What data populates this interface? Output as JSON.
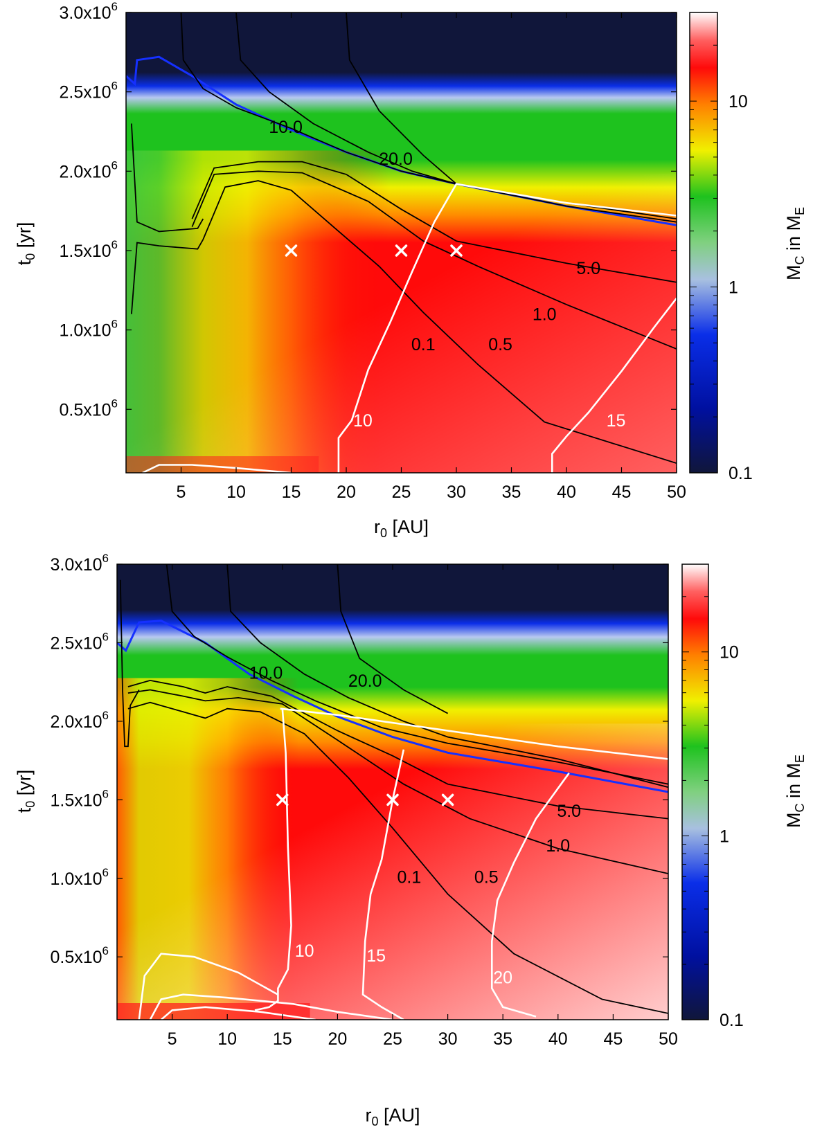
{
  "chart_data": [
    {
      "type": "heatmap",
      "panel": "top",
      "xlabel": "r",
      "xlabel_sub": "0",
      "xlabel_unit": "[AU]",
      "ylabel": "t",
      "ylabel_sub": "0",
      "ylabel_unit": "[yr]",
      "xlim": [
        0,
        50
      ],
      "ylim": [
        100000,
        3000000
      ],
      "xticks": [
        {
          "value": 5,
          "label": "5"
        },
        {
          "value": 10,
          "label": "10"
        },
        {
          "value": 15,
          "label": "15"
        },
        {
          "value": 20,
          "label": "20"
        },
        {
          "value": 25,
          "label": "25"
        },
        {
          "value": 30,
          "label": "30"
        },
        {
          "value": 35,
          "label": "35"
        },
        {
          "value": 40,
          "label": "40"
        },
        {
          "value": 45,
          "label": "45"
        },
        {
          "value": 50,
          "label": "50"
        }
      ],
      "yticks": [
        {
          "value": 500000,
          "mant": "0.5x10",
          "exp": "6"
        },
        {
          "value": 1000000,
          "mant": "1.0x10",
          "exp": "6"
        },
        {
          "value": 1500000,
          "mant": "1.5x10",
          "exp": "6"
        },
        {
          "value": 2000000,
          "mant": "2.0x10",
          "exp": "6"
        },
        {
          "value": 2500000,
          "mant": "2.5x10",
          "exp": "6"
        },
        {
          "value": 3000000,
          "mant": "3.0x10",
          "exp": "6"
        }
      ],
      "colorbar": {
        "label_main": "M",
        "label_sub": "C",
        "label_mid": " in M",
        "label_sub2": "E",
        "scale": "log",
        "range": [
          0.1,
          30
        ],
        "ticks": [
          {
            "value": 0.1,
            "label": "0.1"
          },
          {
            "value": 1,
            "label": "1"
          },
          {
            "value": 10,
            "label": "10"
          }
        ]
      },
      "black_contour_labels": [
        {
          "label": "10.0",
          "x": 14.5,
          "y": 2270000
        },
        {
          "label": "20.0",
          "x": 24.5,
          "y": 2070000
        },
        {
          "label": "5.0",
          "x": 42,
          "y": 1380000
        },
        {
          "label": "1.0",
          "x": 38,
          "y": 1090000
        },
        {
          "label": "0.5",
          "x": 34,
          "y": 900000
        },
        {
          "label": "0.1",
          "x": 27,
          "y": 900000
        }
      ],
      "white_contour_labels": [
        {
          "label": "10",
          "x": 21.5,
          "y": 420000
        },
        {
          "label": "15",
          "x": 44.5,
          "y": 420000
        }
      ],
      "markers": [
        {
          "x": 15,
          "y": 1500000,
          "symbol": "x"
        },
        {
          "x": 25,
          "y": 1500000,
          "symbol": "x"
        },
        {
          "x": 30,
          "y": 1500000,
          "symbol": "x"
        }
      ],
      "colors": {
        "deep": "#10163a",
        "blue": "#0a2ee8",
        "green": "#1ec21e",
        "yellow": "#f0f000",
        "red": "#ff0a0a"
      }
    },
    {
      "type": "heatmap",
      "panel": "bottom",
      "xlabel": "r",
      "xlabel_sub": "0",
      "xlabel_unit": "[AU]",
      "ylabel": "t",
      "ylabel_sub": "0",
      "ylabel_unit": "[yr]",
      "xlim": [
        0,
        50
      ],
      "ylim": [
        100000,
        3000000
      ],
      "xticks": [
        {
          "value": 5,
          "label": "5"
        },
        {
          "value": 10,
          "label": "10"
        },
        {
          "value": 15,
          "label": "15"
        },
        {
          "value": 20,
          "label": "20"
        },
        {
          "value": 25,
          "label": "25"
        },
        {
          "value": 30,
          "label": "30"
        },
        {
          "value": 35,
          "label": "35"
        },
        {
          "value": 40,
          "label": "40"
        },
        {
          "value": 45,
          "label": "45"
        },
        {
          "value": 50,
          "label": "50"
        }
      ],
      "yticks": [
        {
          "value": 500000,
          "mant": "0.5x10",
          "exp": "6"
        },
        {
          "value": 1000000,
          "mant": "1.0x10",
          "exp": "6"
        },
        {
          "value": 1500000,
          "mant": "1.5x10",
          "exp": "6"
        },
        {
          "value": 2000000,
          "mant": "2.0x10",
          "exp": "6"
        },
        {
          "value": 2500000,
          "mant": "2.5x10",
          "exp": "6"
        },
        {
          "value": 3000000,
          "mant": "3.0x10",
          "exp": "6"
        }
      ],
      "colorbar": {
        "label_main": "M",
        "label_sub": "C",
        "label_mid": " in M",
        "label_sub2": "E",
        "scale": "log",
        "range": [
          0.1,
          30
        ],
        "ticks": [
          {
            "value": 0.1,
            "label": "0.1"
          },
          {
            "value": 1,
            "label": "1"
          },
          {
            "value": 10,
            "label": "10"
          }
        ]
      },
      "black_contour_labels": [
        {
          "label": "10.0",
          "x": 13.5,
          "y": 2300000
        },
        {
          "label": "20.0",
          "x": 22.5,
          "y": 2250000
        },
        {
          "label": "5.0",
          "x": 41,
          "y": 1420000
        },
        {
          "label": "1.0",
          "x": 40,
          "y": 1200000
        },
        {
          "label": "0.5",
          "x": 33.5,
          "y": 1000000
        },
        {
          "label": "0.1",
          "x": 26.5,
          "y": 1000000
        }
      ],
      "white_contour_labels": [
        {
          "label": "10",
          "x": 17,
          "y": 530000
        },
        {
          "label": "15",
          "x": 23.5,
          "y": 500000
        },
        {
          "label": "20",
          "x": 35,
          "y": 360000
        }
      ],
      "markers": [
        {
          "x": 15,
          "y": 1500000,
          "symbol": "x"
        },
        {
          "x": 25,
          "y": 1500000,
          "symbol": "x"
        },
        {
          "x": 30,
          "y": 1500000,
          "symbol": "x"
        }
      ],
      "colors": {
        "deep": "#10163a",
        "blue": "#0a2ee8",
        "green": "#1ec21e",
        "yellow": "#f0f000",
        "red": "#ff0a0a"
      }
    }
  ]
}
